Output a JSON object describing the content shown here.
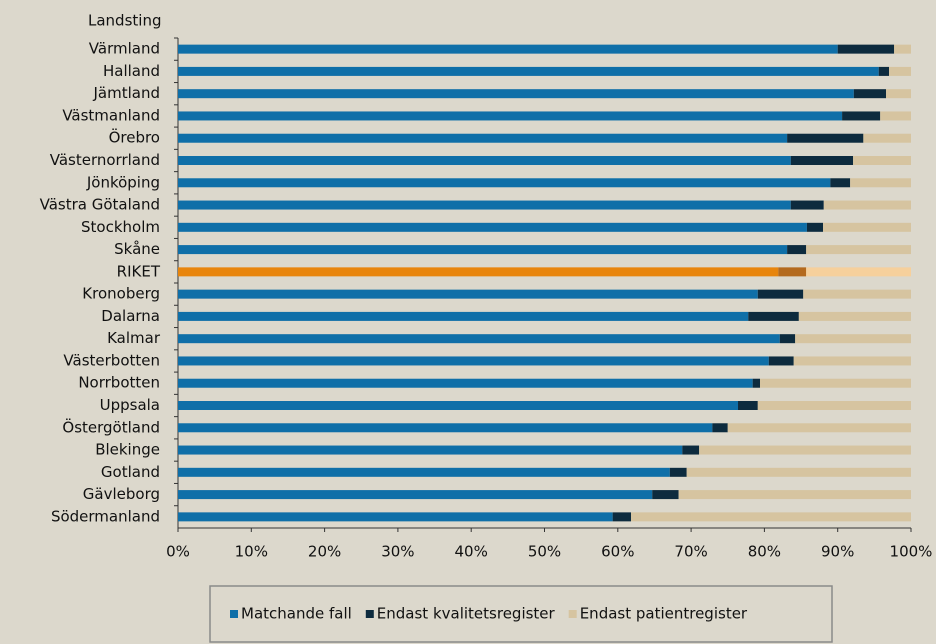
{
  "chart_data": {
    "type": "stacked_barh",
    "y_axis_label": "Landsting",
    "categories": [
      "Värmland",
      "Halland",
      "Jämtland",
      "Västmanland",
      "Örebro",
      "Västernorrland",
      "Jönköping",
      "Västra Götaland",
      "Stockholm",
      "Skåne",
      "RIKET",
      "Kronoberg",
      "Dalarna",
      "Kalmar",
      "Västerbotten",
      "Norrbotten",
      "Uppsala",
      "Östergötland",
      "Blekinge",
      "Gotland",
      "Gävleborg",
      "Södermanland"
    ],
    "series": [
      {
        "name": "Matchande fall",
        "color": "#0f6fa8",
        "highlight_color": "#e8850c",
        "values": [
          90.0,
          95.6,
          92.2,
          90.6,
          83.1,
          83.6,
          89.0,
          83.6,
          85.8,
          83.1,
          81.9,
          79.1,
          77.8,
          82.1,
          80.6,
          78.4,
          76.4,
          72.9,
          68.8,
          67.1,
          64.7,
          59.3
        ]
      },
      {
        "name": "Endast kvalitetsregister",
        "color": "#0d2b3e",
        "highlight_color": "#b46a1e",
        "values": [
          7.7,
          1.4,
          4.4,
          5.2,
          10.4,
          8.5,
          2.7,
          4.5,
          2.2,
          2.6,
          3.8,
          6.2,
          6.9,
          2.1,
          3.4,
          1.0,
          2.7,
          2.1,
          2.3,
          2.3,
          3.6,
          2.5
        ]
      },
      {
        "name": "Endast patientregister",
        "color": "#d6c4a0",
        "highlight_color": "#f6d09c",
        "values": [
          2.3,
          3.0,
          3.4,
          4.2,
          6.5,
          7.9,
          8.3,
          11.9,
          12.0,
          14.3,
          14.3,
          14.7,
          15.3,
          15.8,
          16.0,
          20.6,
          20.9,
          25.0,
          28.9,
          30.6,
          31.7,
          38.2
        ]
      }
    ],
    "highlight": "RIKET",
    "xlim": [
      0,
      100
    ],
    "xticks": [
      {
        "value": 0,
        "label": "0%"
      },
      {
        "value": 10,
        "label": "10%"
      },
      {
        "value": 20,
        "label": "20%"
      },
      {
        "value": 30,
        "label": "30%"
      },
      {
        "value": 40,
        "label": "40%"
      },
      {
        "value": 50,
        "label": "50%"
      },
      {
        "value": 60,
        "label": "60%"
      },
      {
        "value": 70,
        "label": "70%"
      },
      {
        "value": 80,
        "label": "80%"
      },
      {
        "value": 90,
        "label": "90%"
      },
      {
        "value": 100,
        "label": "100%"
      }
    ],
    "legend": "bottom"
  }
}
